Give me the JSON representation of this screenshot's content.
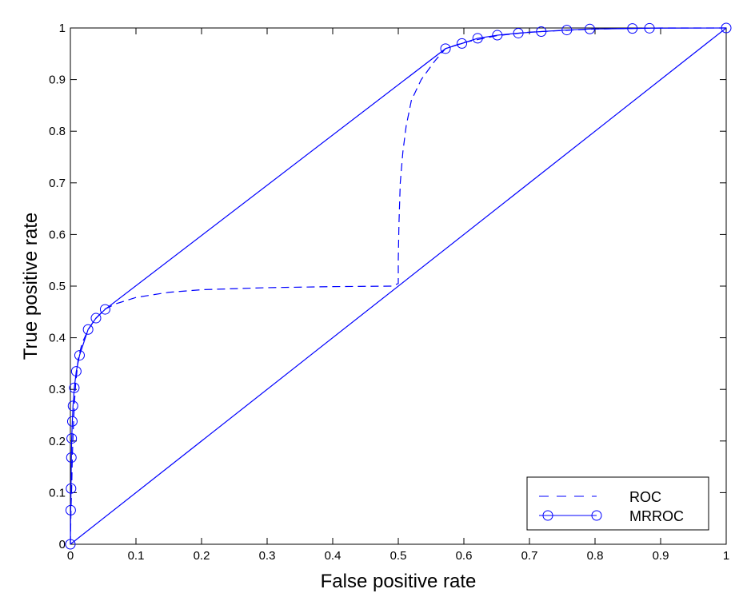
{
  "chart_data": {
    "type": "line",
    "title": "",
    "xlabel": "False positive rate",
    "ylabel": "True positive rate",
    "xlim": [
      0,
      1
    ],
    "ylim": [
      0,
      1
    ],
    "xticks": [
      "0",
      "0.1",
      "0.2",
      "0.3",
      "0.4",
      "0.5",
      "0.6",
      "0.7",
      "0.8",
      "0.9",
      "1"
    ],
    "yticks": [
      "0",
      "0.1",
      "0.2",
      "0.3",
      "0.4",
      "0.5",
      "0.6",
      "0.7",
      "0.8",
      "0.9",
      "1"
    ],
    "grid": false,
    "legend_position": "bottom-right",
    "line_color": "#0000ff",
    "series": [
      {
        "name": "ROC",
        "style": "dashed",
        "x": [
          0,
          0.001,
          0.002,
          0.003,
          0.004,
          0.006,
          0.008,
          0.012,
          0.018,
          0.027,
          0.037,
          0.052,
          0.07,
          0.1,
          0.15,
          0.2,
          0.3,
          0.4,
          0.49,
          0.5,
          0.5,
          0.501,
          0.503,
          0.507,
          0.512,
          0.52,
          0.535,
          0.555,
          0.572,
          0.6,
          0.65,
          0.7,
          0.8,
          0.9,
          1
        ],
        "y": [
          0,
          0.07,
          0.11,
          0.17,
          0.21,
          0.27,
          0.31,
          0.36,
          0.39,
          0.415,
          0.435,
          0.455,
          0.466,
          0.478,
          0.488,
          0.493,
          0.497,
          0.499,
          0.5,
          0.505,
          0.55,
          0.62,
          0.7,
          0.76,
          0.81,
          0.86,
          0.9,
          0.935,
          0.96,
          0.972,
          0.985,
          0.992,
          0.998,
          1.0,
          1.0
        ]
      },
      {
        "name": "MRROC",
        "style": "solid",
        "marker": "circle",
        "x": [
          0,
          0.0005,
          0.001,
          0.0015,
          0.002,
          0.003,
          0.004,
          0.006,
          0.009,
          0.014,
          0.027,
          0.039,
          0.053,
          0.572,
          0.597,
          0.621,
          0.651,
          0.683,
          0.718,
          0.757,
          0.792,
          0.857,
          0.883,
          1
        ],
        "y": [
          0,
          0.066,
          0.108,
          0.168,
          0.205,
          0.238,
          0.268,
          0.303,
          0.335,
          0.366,
          0.416,
          0.438,
          0.455,
          0.96,
          0.97,
          0.98,
          0.986,
          0.99,
          0.993,
          0.996,
          0.998,
          0.999,
          0.9995,
          1.0
        ]
      },
      {
        "name": "",
        "style": "solid",
        "x": [
          0,
          1
        ],
        "y": [
          0,
          1
        ]
      }
    ],
    "legend": [
      {
        "label": "ROC",
        "style": "dashed"
      },
      {
        "label": "MRROC",
        "style": "solid-circle"
      }
    ]
  }
}
